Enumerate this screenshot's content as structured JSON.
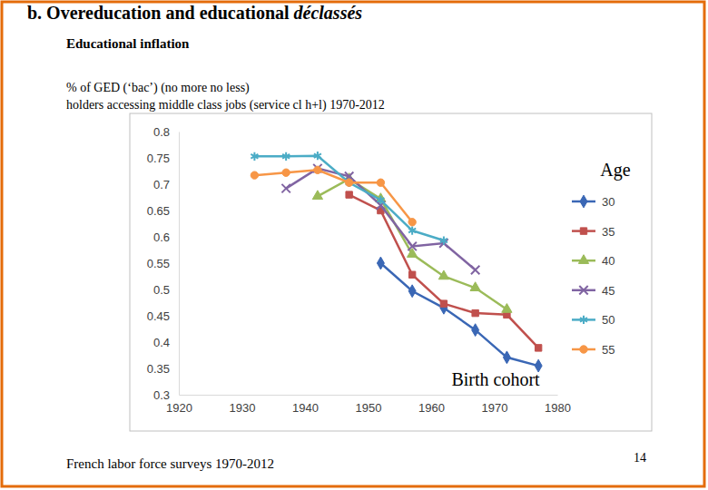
{
  "slide": {
    "heading": "b. Overeducation and educational ",
    "heading_em": "déclassés",
    "source": "French labor force surveys 1970-2012",
    "page": "14"
  },
  "chart_data": {
    "type": "line",
    "title": "Educational inflation",
    "subtitle": [
      "% of GED (‘bac’) (no more no less)",
      "holders accessing middle class jobs (service cl h+l) 1970-2012"
    ],
    "x_label": "Birth cohort",
    "legend_title": "Age",
    "legend": "right",
    "grid": false,
    "x": [
      1932,
      1937,
      1942,
      1947,
      1952,
      1957,
      1962,
      1967,
      1972,
      1977
    ],
    "xlim": [
      1920,
      1980
    ],
    "xticks": [
      1920,
      1930,
      1940,
      1950,
      1960,
      1970,
      1980
    ],
    "ylim": [
      0.3,
      0.8
    ],
    "yticks": [
      0.3,
      0.35,
      0.4,
      0.45,
      0.5,
      0.55,
      0.6,
      0.65,
      0.7,
      0.75,
      0.8
    ],
    "series": [
      {
        "name": "30",
        "color": "#3a67b5",
        "marker": "diamond",
        "values": [
          null,
          null,
          null,
          null,
          0.55,
          0.497,
          0.465,
          0.423,
          0.371,
          0.355
        ]
      },
      {
        "name": "35",
        "color": "#c0504d",
        "marker": "square",
        "values": [
          null,
          null,
          null,
          0.68,
          0.65,
          0.528,
          0.473,
          0.455,
          0.452,
          0.389
        ]
      },
      {
        "name": "40",
        "color": "#9bbb59",
        "marker": "triangle",
        "values": [
          null,
          null,
          0.677,
          0.71,
          0.672,
          0.567,
          0.525,
          0.503,
          0.462,
          null
        ]
      },
      {
        "name": "45",
        "color": "#8064a2",
        "marker": "x",
        "values": [
          null,
          0.692,
          0.73,
          0.715,
          0.66,
          0.582,
          0.588,
          0.537,
          null,
          null
        ]
      },
      {
        "name": "50",
        "color": "#4bacc6",
        "marker": "star",
        "values": [
          0.753,
          0.753,
          0.754,
          0.703,
          0.67,
          0.612,
          0.593,
          null,
          null,
          null
        ]
      },
      {
        "name": "55",
        "color": "#f79646",
        "marker": "circle",
        "values": [
          0.717,
          0.722,
          0.727,
          0.703,
          0.703,
          0.628,
          null,
          null,
          null,
          null
        ]
      }
    ]
  }
}
